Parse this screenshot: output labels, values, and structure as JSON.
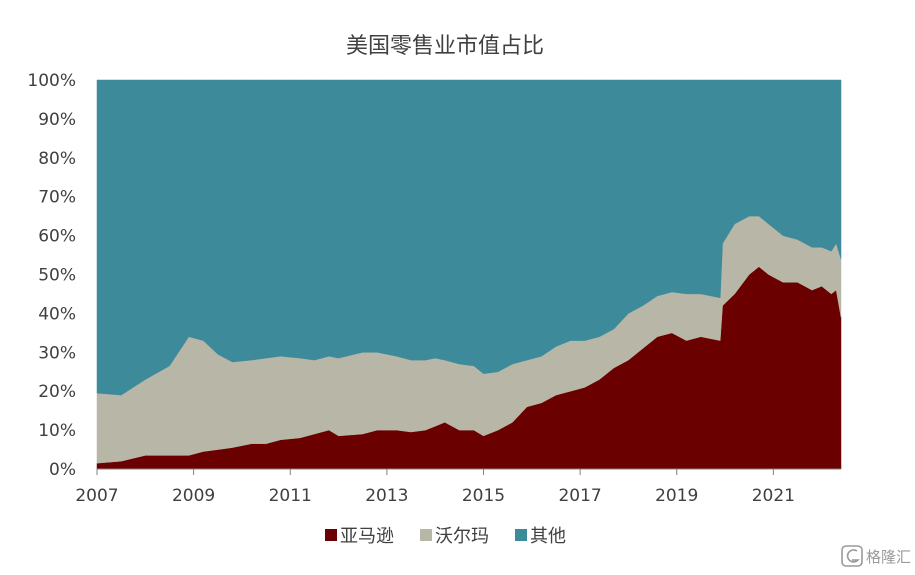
{
  "chart_data": {
    "type": "area",
    "stacked": true,
    "title": "美国零售业市值占比",
    "xlabel": "",
    "ylabel": "",
    "x_ticks": [
      "2007",
      "2009",
      "2011",
      "2013",
      "2015",
      "2017",
      "2019",
      "2021"
    ],
    "y_ticks": [
      "0%",
      "10%",
      "20%",
      "30%",
      "40%",
      "50%",
      "60%",
      "70%",
      "80%",
      "90%",
      "100%"
    ],
    "xlim": [
      2007.0,
      2022.4
    ],
    "ylim": [
      0,
      100
    ],
    "grid": false,
    "legend_position": "bottom",
    "x": [
      2007.0,
      2007.5,
      2008.0,
      2008.5,
      2008.9,
      2009.2,
      2009.5,
      2009.8,
      2010.2,
      2010.5,
      2010.8,
      2011.2,
      2011.5,
      2011.8,
      2012.0,
      2012.5,
      2012.8,
      2013.2,
      2013.5,
      2013.8,
      2014.0,
      2014.2,
      2014.5,
      2014.8,
      2015.0,
      2015.3,
      2015.6,
      2015.9,
      2016.2,
      2016.5,
      2016.8,
      2017.1,
      2017.4,
      2017.7,
      2018.0,
      2018.3,
      2018.6,
      2018.9,
      2019.2,
      2019.5,
      2019.9,
      2019.95,
      2020.2,
      2020.5,
      2020.7,
      2020.9,
      2021.2,
      2021.5,
      2021.8,
      2022.0,
      2022.2,
      2022.3,
      2022.4
    ],
    "series": [
      {
        "name": "亚马逊",
        "color": "#6b0000",
        "values": [
          1.5,
          2.0,
          3.5,
          3.5,
          3.5,
          4.5,
          5.0,
          5.5,
          6.5,
          6.5,
          7.5,
          8.0,
          9.0,
          10.0,
          8.5,
          9.0,
          10.0,
          10.0,
          9.5,
          10.0,
          11.0,
          12.0,
          10.0,
          10.0,
          8.5,
          10.0,
          12.0,
          16.0,
          17.0,
          19.0,
          20.0,
          21.0,
          23.0,
          26.0,
          28.0,
          31.0,
          34.0,
          35.0,
          33.0,
          34.0,
          33.0,
          42.0,
          45.0,
          50.0,
          52.0,
          50.0,
          48.0,
          48.0,
          46.0,
          47.0,
          45.0,
          46.0,
          39.0
        ]
      },
      {
        "name": "沃尔玛",
        "color": "#b8b6a6",
        "values": [
          18.0,
          17.0,
          19.5,
          23.0,
          30.5,
          28.5,
          24.5,
          22.0,
          21.5,
          22.0,
          21.5,
          20.5,
          19.0,
          19.0,
          20.0,
          21.0,
          20.0,
          19.0,
          18.5,
          18.0,
          17.5,
          16.0,
          17.0,
          16.5,
          16.0,
          15.0,
          15.0,
          12.0,
          12.0,
          12.5,
          13.0,
          12.0,
          11.0,
          10.0,
          12.0,
          11.0,
          10.5,
          10.5,
          12.0,
          11.0,
          11.0,
          16.0,
          18.0,
          15.0,
          13.0,
          13.0,
          12.0,
          11.0,
          11.0,
          10.0,
          11.0,
          12.0,
          15.0
        ]
      },
      {
        "name": "其他",
        "color": "#3d8a9b",
        "values": [
          80.5,
          81.0,
          77.0,
          73.5,
          66.0,
          67.0,
          70.5,
          72.5,
          72.0,
          71.5,
          71.0,
          71.5,
          72.0,
          71.0,
          71.5,
          70.0,
          70.0,
          71.0,
          72.0,
          72.0,
          71.5,
          72.0,
          73.0,
          73.5,
          75.5,
          75.0,
          73.0,
          72.0,
          71.0,
          68.5,
          67.0,
          67.0,
          66.0,
          64.0,
          60.0,
          58.0,
          55.5,
          54.5,
          55.0,
          55.0,
          56.0,
          42.0,
          37.0,
          35.0,
          35.0,
          37.0,
          40.0,
          41.0,
          43.0,
          43.0,
          44.0,
          42.0,
          46.0
        ]
      }
    ]
  },
  "watermark": {
    "icon": "gelonghui-logo-icon",
    "text": "格隆汇"
  }
}
